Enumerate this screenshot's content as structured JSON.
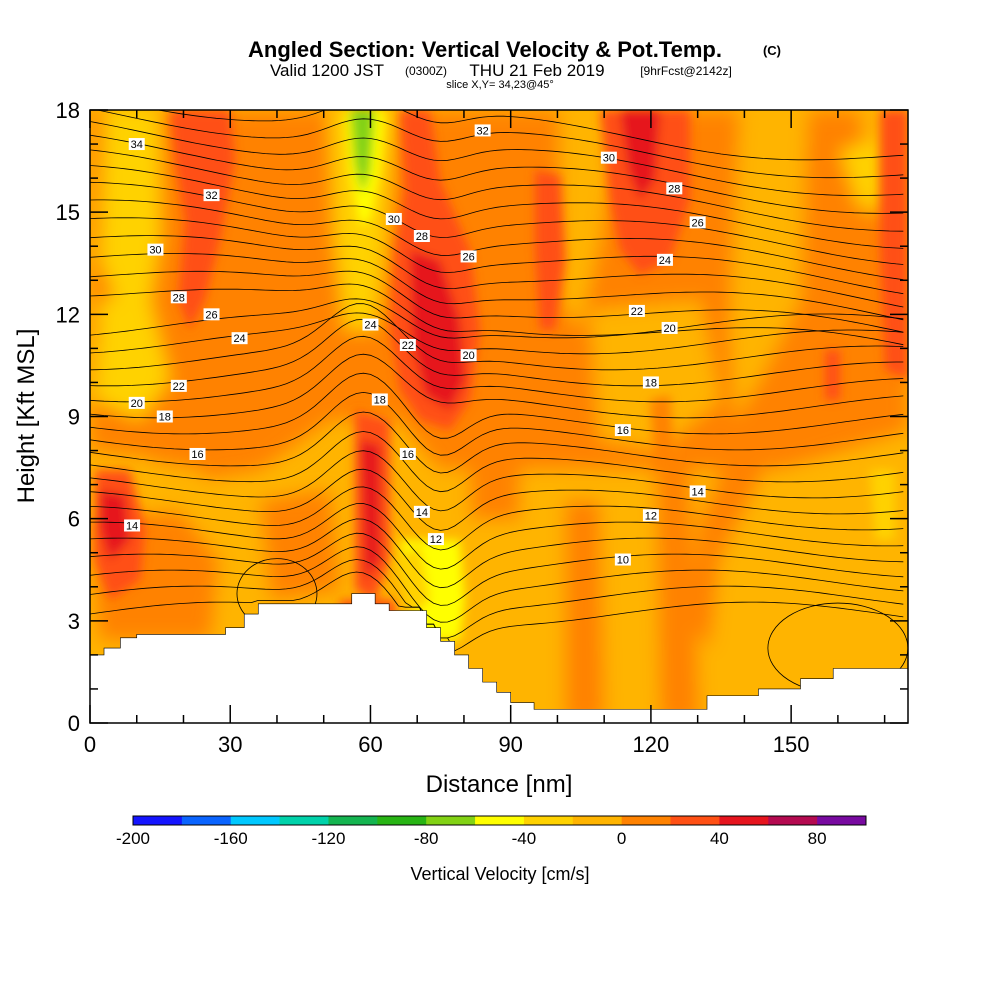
{
  "chart_data": {
    "type": "heatmap",
    "title": "Angled Section: Vertical Velocity & Pot.Temp.",
    "title_suffix": "(C)",
    "subtitle_main": "Valid 1200 JST",
    "subtitle_z": "(0300Z)",
    "subtitle_date": "THU 21 Feb 2019",
    "subtitle_fcst": "[9hrFcst@2142z]",
    "slice_label": "slice X,Y= 34,23@45°",
    "xlabel": "Distance [nm]",
    "ylabel": "Height [Kft MSL]",
    "xlim": [
      0,
      175
    ],
    "ylim": [
      0,
      18
    ],
    "x_ticks": [
      0,
      30,
      60,
      90,
      120,
      150
    ],
    "y_ticks": [
      0,
      3,
      6,
      9,
      12,
      15,
      18
    ],
    "colorbar": {
      "label": "Vertical Velocity [cm/s]",
      "ticks": [
        "-200",
        "-160",
        "-120",
        "-80",
        "-40",
        "0",
        "40",
        "80"
      ],
      "tick_values": [
        -200,
        -160,
        -120,
        -80,
        -40,
        0,
        40,
        80
      ],
      "range": [
        -200,
        100
      ],
      "colors": [
        "#1414ff",
        "#0a64ff",
        "#00c8ff",
        "#00d2aa",
        "#14b450",
        "#28b414",
        "#82d214",
        "#ffff00",
        "#ffd200",
        "#ffb400",
        "#ff8200",
        "#ff5014",
        "#e6141e",
        "#b40a50",
        "#780aa0"
      ]
    },
    "theta_contour_labels": [
      "34",
      "32",
      "30",
      "28",
      "26",
      "24",
      "22",
      "20",
      "18",
      "16",
      "14",
      "12",
      "10"
    ],
    "theta_contour_labels_placed": [
      {
        "v": "34",
        "x": 10,
        "y": 17.0
      },
      {
        "v": "32",
        "x": 26,
        "y": 15.5
      },
      {
        "v": "30",
        "x": 14,
        "y": 13.9
      },
      {
        "v": "28",
        "x": 19,
        "y": 12.5
      },
      {
        "v": "26",
        "x": 26,
        "y": 12.0
      },
      {
        "v": "24",
        "x": 32,
        "y": 11.3
      },
      {
        "v": "22",
        "x": 19,
        "y": 9.9
      },
      {
        "v": "20",
        "x": 10,
        "y": 9.4
      },
      {
        "v": "18",
        "x": 16,
        "y": 9.0
      },
      {
        "v": "16",
        "x": 23,
        "y": 7.9
      },
      {
        "v": "14",
        "x": 9,
        "y": 5.8
      },
      {
        "v": "24",
        "x": 60,
        "y": 11.7
      },
      {
        "v": "18",
        "x": 62,
        "y": 9.5
      },
      {
        "v": "16",
        "x": 68,
        "y": 7.9
      },
      {
        "v": "14",
        "x": 71,
        "y": 6.2
      },
      {
        "v": "12",
        "x": 74,
        "y": 5.4
      },
      {
        "v": "30",
        "x": 65,
        "y": 14.8
      },
      {
        "v": "28",
        "x": 71,
        "y": 14.3
      },
      {
        "v": "26",
        "x": 81,
        "y": 13.7
      },
      {
        "v": "22",
        "x": 68,
        "y": 11.1
      },
      {
        "v": "20",
        "x": 81,
        "y": 10.8
      },
      {
        "v": "32",
        "x": 84,
        "y": 17.4
      },
      {
        "v": "30",
        "x": 111,
        "y": 16.6
      },
      {
        "v": "28",
        "x": 125,
        "y": 15.7
      },
      {
        "v": "26",
        "x": 130,
        "y": 14.7
      },
      {
        "v": "24",
        "x": 123,
        "y": 13.6
      },
      {
        "v": "22",
        "x": 117,
        "y": 12.1
      },
      {
        "v": "20",
        "x": 124,
        "y": 11.6
      },
      {
        "v": "18",
        "x": 120,
        "y": 10.0
      },
      {
        "v": "16",
        "x": 114,
        "y": 8.6
      },
      {
        "v": "14",
        "x": 130,
        "y": 6.8
      },
      {
        "v": "12",
        "x": 120,
        "y": 6.1
      },
      {
        "v": "10",
        "x": 114,
        "y": 4.8
      }
    ],
    "terrain_heights_kft": [
      {
        "x": 0,
        "h": 2.0
      },
      {
        "x": 3,
        "h": 2.2
      },
      {
        "x": 6.5,
        "h": 2.5
      },
      {
        "x": 10,
        "h": 2.6
      },
      {
        "x": 29,
        "h": 2.8
      },
      {
        "x": 33,
        "h": 3.2
      },
      {
        "x": 36,
        "h": 3.5
      },
      {
        "x": 52,
        "h": 3.5
      },
      {
        "x": 56,
        "h": 3.8
      },
      {
        "x": 61,
        "h": 3.5
      },
      {
        "x": 64,
        "h": 3.3
      },
      {
        "x": 70,
        "h": 3.3
      },
      {
        "x": 72,
        "h": 2.8
      },
      {
        "x": 75,
        "h": 2.4
      },
      {
        "x": 78,
        "h": 2.0
      },
      {
        "x": 81,
        "h": 1.6
      },
      {
        "x": 84,
        "h": 1.2
      },
      {
        "x": 87,
        "h": 0.9
      },
      {
        "x": 90,
        "h": 0.6
      },
      {
        "x": 95,
        "h": 0.4
      },
      {
        "x": 130,
        "h": 0.4
      },
      {
        "x": 132,
        "h": 0.8
      },
      {
        "x": 143,
        "h": 0.8
      },
      {
        "x": 143,
        "h": 1.0
      },
      {
        "x": 152,
        "h": 1.0
      },
      {
        "x": 152,
        "h": 1.3
      },
      {
        "x": 159,
        "h": 1.3
      },
      {
        "x": 159,
        "h": 1.6
      },
      {
        "x": 175,
        "h": 1.6
      }
    ]
  }
}
